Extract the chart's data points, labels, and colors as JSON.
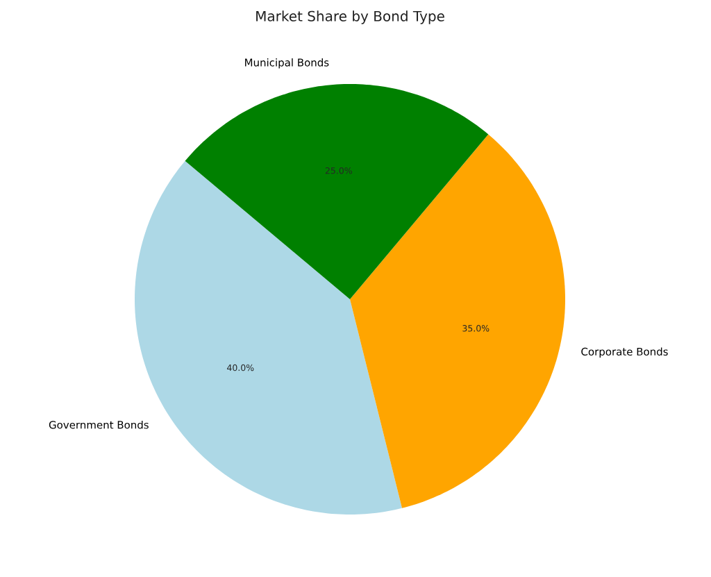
{
  "chart_data": {
    "type": "pie",
    "title": "Market Share by Bond Type",
    "categories": [
      "Government Bonds",
      "Corporate Bonds",
      "Municipal Bonds"
    ],
    "values": [
      40,
      35,
      25
    ],
    "colors": [
      "#add8e6",
      "#ffa500",
      "#008000"
    ],
    "value_labels": [
      "40.0%",
      "35.0%",
      "25.0%"
    ]
  }
}
